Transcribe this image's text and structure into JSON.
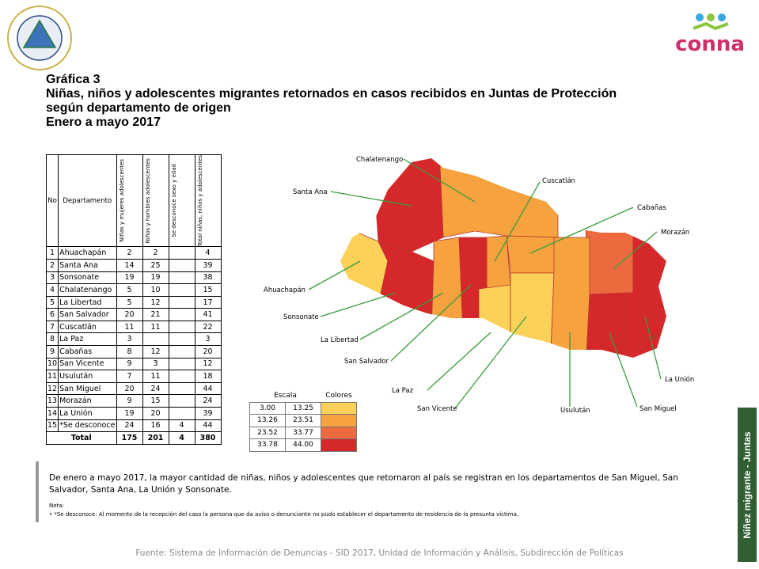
{
  "header": {
    "title_lines": [
      "Gráfica 3",
      "Niñas, niños y adolescentes migrantes retornados en casos recibidos en Juntas de Protección",
      "según departamento de origen",
      "Enero a mayo 2017"
    ],
    "logo_text": "conna"
  },
  "table": {
    "columns": [
      "No",
      "Departamento",
      "Niñas y mujeres adolescentes",
      "Niños y hombres adolescentes",
      "Se desconoce sexo y edad",
      "Total niñas, niños y adolescentes"
    ],
    "rows": [
      [
        1,
        "Ahuachapán",
        2,
        2,
        null,
        4
      ],
      [
        2,
        "Santa Ana",
        14,
        25,
        null,
        39
      ],
      [
        3,
        "Sonsonate",
        19,
        19,
        null,
        38
      ],
      [
        4,
        "Chalatenango",
        5,
        10,
        null,
        15
      ],
      [
        5,
        "La Libertad",
        5,
        12,
        null,
        17
      ],
      [
        6,
        "San Salvador",
        20,
        21,
        null,
        41
      ],
      [
        7,
        "Cuscatlán",
        11,
        11,
        null,
        22
      ],
      [
        8,
        "La Paz",
        3,
        null,
        null,
        3
      ],
      [
        9,
        "Cabañas",
        8,
        12,
        null,
        20
      ],
      [
        10,
        "San Vicente",
        9,
        3,
        null,
        12
      ],
      [
        11,
        "Usulután",
        7,
        11,
        null,
        18
      ],
      [
        12,
        "San Miguel",
        20,
        24,
        null,
        44
      ],
      [
        13,
        "Morazán",
        9,
        15,
        null,
        24
      ],
      [
        14,
        "La Unión",
        19,
        20,
        null,
        39
      ],
      [
        15,
        "*Se desconoce",
        24,
        16,
        4,
        44
      ]
    ],
    "total": {
      "label": "Total",
      "values": [
        175,
        201,
        4,
        380
      ]
    }
  },
  "map": {
    "regions": [
      {
        "label": "Chalatenango",
        "color": "#f5a23f"
      },
      {
        "label": "Cuscatlán",
        "color": "#f5a23f"
      },
      {
        "label": "Santa Ana",
        "color": "#d5282b"
      },
      {
        "label": "Cabañas",
        "color": "#f5a23f"
      },
      {
        "label": "Morazán",
        "color": "#ec6a3d"
      },
      {
        "label": "Ahuachapán",
        "color": "#fbd15a"
      },
      {
        "label": "Sonsonate",
        "color": "#d5282b"
      },
      {
        "label": "La Libertad",
        "color": "#f5a23f"
      },
      {
        "label": "San Salvador",
        "color": "#d5282b"
      },
      {
        "label": "La Unión",
        "color": "#d5282b"
      },
      {
        "label": "La Paz",
        "color": "#fbd15a"
      },
      {
        "label": "San Vicente",
        "color": "#fbd15a"
      },
      {
        "label": "Usulután",
        "color": "#f5a23f"
      },
      {
        "label": "San Miguel",
        "color": "#d5282b"
      }
    ]
  },
  "scale": {
    "headers": [
      "Escala",
      "Colores"
    ],
    "rows": [
      [
        "3.00",
        "13.25"
      ],
      [
        "13.26",
        "23.51"
      ],
      [
        "23.52",
        "33.77"
      ],
      [
        "33.78",
        "44.00"
      ]
    ],
    "colors": [
      "#fbd15a",
      "#f5a23f",
      "#ec6a3d",
      "#d5282b"
    ]
  },
  "text": {
    "paragraph": "De enero a mayo 2017, la mayor cantidad de niñas, niños y adolescentes que retornaron al país se registran en los departamentos de San Miguel, San Salvador, Santa Ana, La Unión y Sonsonate.",
    "note_title": "Nota:",
    "note": "•   *Se desconoce: Al momento de la recepción del caso la persona que da aviso o denunciante no pudo establecer el departamento de residencia de la presunta víctima.",
    "source": "Fuente: Sistema de Información de Denuncias - SID 2017, Unidad de Información y Análisis, Subdirección de Políticas",
    "side_label": "Niñez migrante - Juntas"
  }
}
